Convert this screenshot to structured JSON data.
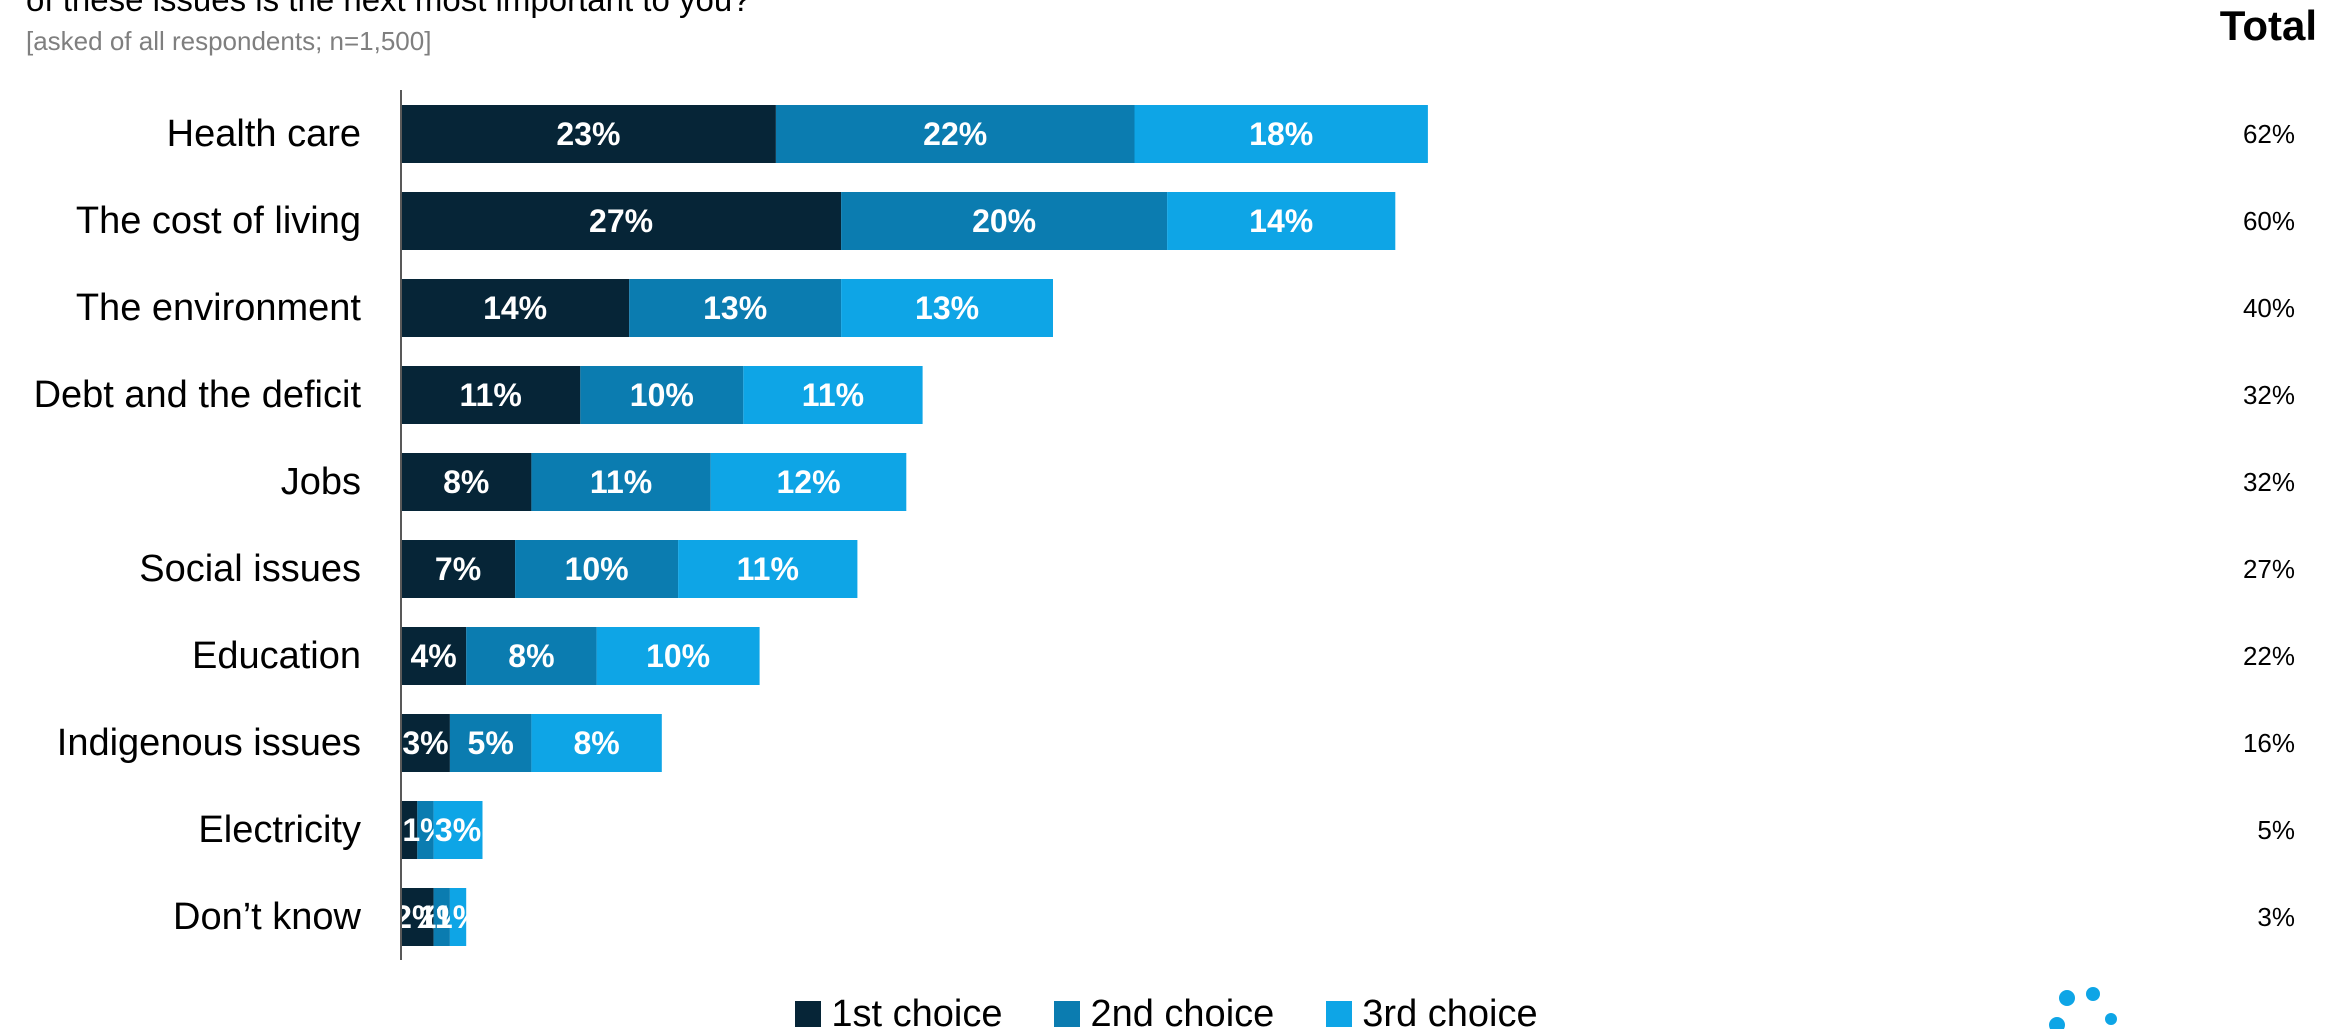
{
  "header": {
    "question": "of these issues is the next most important to you?",
    "subnote": "[asked of all respondents; n=1,500]",
    "total_label": "Total"
  },
  "colors": {
    "first": "#062537",
    "second": "#0b7cb0",
    "third": "#0ea5e6",
    "axis": "#595959",
    "logo": "#0ea5e6"
  },
  "logo": {
    "icon": "dots-logo-icon"
  },
  "chart_data": {
    "type": "bar",
    "orientation": "horizontal",
    "stacked": true,
    "categories": [
      "Health care",
      "The cost of living",
      "The environment",
      "Debt and the deficit",
      "Jobs",
      "Social issues",
      "Education",
      "Indigenous issues",
      "Electricity",
      "Don’t know"
    ],
    "series": [
      {
        "name": "1st choice",
        "values": [
          23,
          27,
          14,
          11,
          8,
          7,
          4,
          3,
          1,
          2
        ],
        "labels": [
          "23%",
          "27%",
          "14%",
          "11%",
          "8%",
          "7%",
          "4%",
          "3%",
          "",
          "2%"
        ]
      },
      {
        "name": "2nd choice",
        "values": [
          22,
          20,
          13,
          10,
          11,
          10,
          8,
          5,
          1,
          1
        ],
        "labels": [
          "22%",
          "20%",
          "13%",
          "10%",
          "11%",
          "10%",
          "8%",
          "5%",
          "1%",
          "1%"
        ]
      },
      {
        "name": "3rd choice",
        "values": [
          18,
          14,
          13,
          11,
          12,
          11,
          10,
          8,
          3,
          1
        ],
        "labels": [
          "18%",
          "14%",
          "13%",
          "11%",
          "12%",
          "11%",
          "10%",
          "8%",
          "3%",
          "1%"
        ]
      }
    ],
    "totals": [
      "62%",
      "60%",
      "40%",
      "32%",
      "32%",
      "27%",
      "22%",
      "16%",
      "5%",
      "3%"
    ],
    "legend": [
      "1st choice",
      "2nd choice",
      "3rd choice"
    ],
    "legend_position": "bottom",
    "grid": false
  }
}
